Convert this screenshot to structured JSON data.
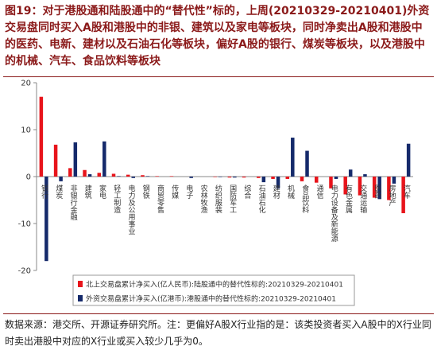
{
  "chart_data": {
    "type": "bar",
    "title": "图19：对于港股通和陆股通中的“替代性”标的，上周(20210329-20210401)外资交易盘同时买入A股和港股中的非银、建筑以及家电等板块，同时净卖出A股和港股中的医药、电新、建材以及石油石化等板块，偏好A股的银行、煤炭等板块，以及港股中的机械、汽车、食品饮料等板块",
    "categories": [
      "银行",
      "煤炭",
      "非银行金融",
      "建筑",
      "家电",
      "轻工制造",
      "电力及公用事业",
      "钢铁",
      "商贸零售",
      "传媒",
      "电子",
      "农林牧渔",
      "纺织服装",
      "国防军工",
      "综合",
      "石油石化",
      "建材",
      "机械",
      "食品饮料",
      "通信",
      "电力设备及新能源",
      "有色金属",
      "交通运输",
      "医药",
      "房地产",
      "汽车"
    ],
    "series": [
      {
        "name": "北上交易盘累计净买入(亿人民币):陆股通中的替代性标的:20210329-20210401",
        "color": "#e8141b",
        "values": [
          17,
          6.8,
          1.8,
          1.4,
          0.8,
          0.6,
          0.4,
          0.3,
          0.1,
          0.1,
          0,
          0,
          -0.1,
          -0.2,
          -0.2,
          -0.3,
          -0.5,
          -0.5,
          -1,
          -1.3,
          -2.5,
          -3.8,
          -4,
          -4.5,
          -5,
          -7.8
        ]
      },
      {
        "name": "外资交易盘累计净买入(亿港币):港股通中的替代性标的:20210329-20210401",
        "color": "#152a6b",
        "values": [
          -18,
          -1,
          7.3,
          0.5,
          7.5,
          0.1,
          -0.3,
          0.1,
          0,
          0,
          -0.3,
          0,
          -0.1,
          -0.2,
          0,
          -1.2,
          -2.5,
          8.3,
          5.5,
          0,
          -0.5,
          1.5,
          0.5,
          -4.8,
          -1.5,
          7
        ]
      }
    ],
    "ylim": [
      -20,
      20
    ],
    "yticks": [
      -20,
      -10,
      0,
      10,
      20
    ],
    "source": "数据来源：港交所、开源证券研究所。注：更偏好A股X行业指的是：该类投资者买入A股中的X行业同时卖出港股中对应的X行业或买入较少几乎为0。"
  }
}
